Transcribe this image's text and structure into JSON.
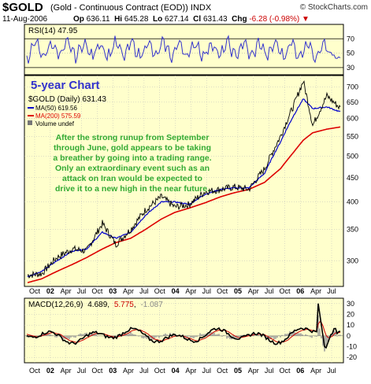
{
  "header": {
    "symbol": "$GOLD",
    "description": "(Gold - Continuous Contract (EOD)) INDX",
    "brand": "© StockCharts.com",
    "date": "11-Aug-2006",
    "open_label": "Op",
    "open": "636.11",
    "high_label": "Hi",
    "high": "645.28",
    "low_label": "Lo",
    "low": "627.14",
    "close_label": "Cl",
    "close": "631.43",
    "change_label": "Chg",
    "change": "-6.28 (-0.98%)"
  },
  "rsi_panel": {
    "label": "RSI(14) 47.95",
    "ticks": [
      "70",
      "50",
      "30"
    ]
  },
  "main_panel": {
    "overlay_title": "5-year Chart",
    "legend_price": "$GOLD (Daily) 631.43",
    "legend_ma50": "MA(50) 619.56",
    "legend_ma200": "MA(200) 575.59",
    "legend_volume": "Volume undef",
    "annotation_lines": [
      "After the strong runup from September",
      "through June, gold appears to be taking",
      "a breather by going into a trading range.",
      "Only an extraordinary event such as an",
      "attack on Iran would be expected to",
      "drive it to a new high in the near future."
    ],
    "y_ticks": [
      "700",
      "650",
      "600",
      "550",
      "500",
      "450",
      "400",
      "350",
      "300"
    ]
  },
  "x_axis_labels": [
    "Oct",
    "02",
    "Apr",
    "Jul",
    "Oct",
    "03",
    "Apr",
    "Jul",
    "Oct",
    "04",
    "Apr",
    "Jul",
    "Oct",
    "05",
    "Apr",
    "Jul",
    "Oct",
    "06",
    "Apr",
    "Jul"
  ],
  "macd_panel": {
    "label_name": "MACD(12,26,9)",
    "label_macd": "4.689",
    "label_signal": "5.775",
    "label_hist": "-1.087",
    "ticks": [
      "30",
      "20",
      "10",
      "0",
      "-10",
      "-20"
    ]
  },
  "colors": {
    "panel_bg": "#ffffcc",
    "price": "#000000",
    "ma50": "#0000cc",
    "ma200": "#dd0000",
    "rsi": "#3333cc",
    "macd": "#000000",
    "signal": "#cc0000",
    "histogram": "#999999",
    "annotation": "#33aa33",
    "overlay_title": "#3333cc"
  },
  "chart_data": [
    {
      "type": "line",
      "series": [
        {
          "name": "$GOLD (Daily)",
          "x": [
            "2001-10",
            "2002-01",
            "2002-04",
            "2002-07",
            "2002-10",
            "2003-01",
            "2003-04",
            "2003-07",
            "2003-10",
            "2004-01",
            "2004-04",
            "2004-07",
            "2004-10",
            "2005-01",
            "2005-04",
            "2005-07",
            "2005-10",
            "2006-01",
            "2006-04",
            "2006-05",
            "2006-06",
            "2006-07",
            "2006-08"
          ],
          "values": [
            280,
            282,
            305,
            318,
            315,
            360,
            325,
            350,
            385,
            410,
            390,
            395,
            420,
            425,
            430,
            425,
            470,
            550,
            640,
            720,
            580,
            670,
            631
          ]
        },
        {
          "name": "MA(50)",
          "values": [
            278,
            285,
            300,
            315,
            318,
            345,
            335,
            345,
            375,
            400,
            400,
            395,
            415,
            425,
            428,
            428,
            460,
            535,
            610,
            660,
            630,
            635,
            620
          ]
        },
        {
          "name": "MA(200)",
          "values": [
            270,
            275,
            285,
            295,
            305,
            318,
            328,
            335,
            350,
            368,
            380,
            388,
            398,
            410,
            418,
            425,
            440,
            470,
            510,
            540,
            560,
            570,
            576
          ]
        }
      ],
      "yscale": "log",
      "ylim": [
        265,
        740
      ]
    },
    {
      "type": "line",
      "series": [
        {
          "name": "RSI(14)",
          "last": 47.95
        }
      ],
      "ylim": [
        20,
        90
      ]
    },
    {
      "type": "line",
      "series": [
        {
          "name": "MACD(12,26,9)",
          "last": 4.689
        },
        {
          "name": "Signal",
          "last": 5.775
        },
        {
          "name": "Histogram",
          "last": -1.087
        }
      ],
      "ylim": [
        -25,
        35
      ]
    }
  ]
}
